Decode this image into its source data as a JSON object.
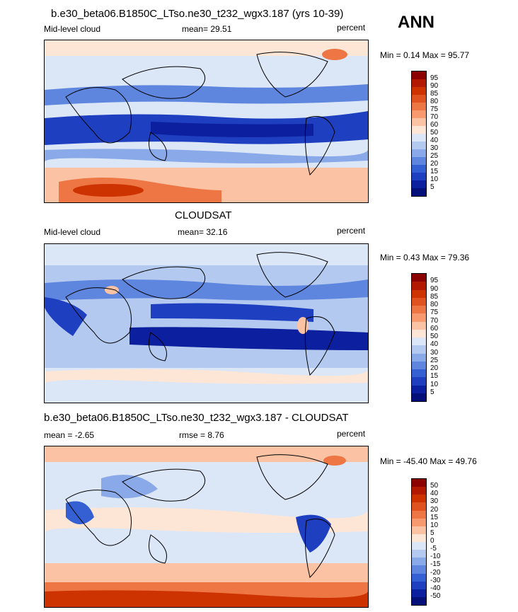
{
  "header": {
    "season": "ANN"
  },
  "panels": [
    {
      "title": "b.e30_beta06.B1850C_LTso.ne30_t232_wgx3.187 (yrs 10-39)",
      "left_label": "Mid-level cloud",
      "center_label": "mean=  29.51",
      "right_label": "percent",
      "minmax": "Min =   0.14 Max =  95.77",
      "levels": [
        "95",
        "90",
        "85",
        "80",
        "75",
        "70",
        "60",
        "50",
        "40",
        "30",
        "25",
        "20",
        "15",
        "10",
        "5"
      ]
    },
    {
      "title": "CLOUDSAT",
      "left_label": "Mid-level cloud",
      "center_label": "mean=  32.16",
      "right_label": "percent",
      "minmax": "Min =   0.43 Max =  79.36",
      "levels": [
        "95",
        "90",
        "85",
        "80",
        "75",
        "70",
        "60",
        "50",
        "40",
        "30",
        "25",
        "20",
        "15",
        "10",
        "5"
      ]
    },
    {
      "title": "b.e30_beta06.B1850C_LTso.ne30_t232_wgx3.187 - CLOUDSAT",
      "left_label": "mean =  -2.65",
      "center_label": "rmse =   8.76",
      "right_label": "percent",
      "minmax": "Min = -45.40 Max =  49.76",
      "levels": [
        "50",
        "40",
        "30",
        "20",
        "15",
        "10",
        "5",
        "0",
        "-5",
        "-10",
        "-15",
        "-20",
        "-30",
        "-40",
        "-50"
      ]
    }
  ],
  "colors": {
    "seq": [
      "#8b0000",
      "#b11a00",
      "#cc3300",
      "#e0521f",
      "#ee7544",
      "#f79a70",
      "#fbc3a3",
      "#fde6d6",
      "#dbe6f7",
      "#b3c9f0",
      "#8aa9e8",
      "#5e86de",
      "#3560d3",
      "#1d3fc0",
      "#0c1f9e",
      "#050f7a"
    ],
    "div": [
      "#8b0000",
      "#b11a00",
      "#cc3300",
      "#e0521f",
      "#ee7544",
      "#f79a70",
      "#fbc3a3",
      "#fde6d6",
      "#dbe6f7",
      "#b3c9f0",
      "#8aa9e8",
      "#5e86de",
      "#3560d3",
      "#1d3fc0",
      "#0c1f9e",
      "#050f7a"
    ]
  }
}
